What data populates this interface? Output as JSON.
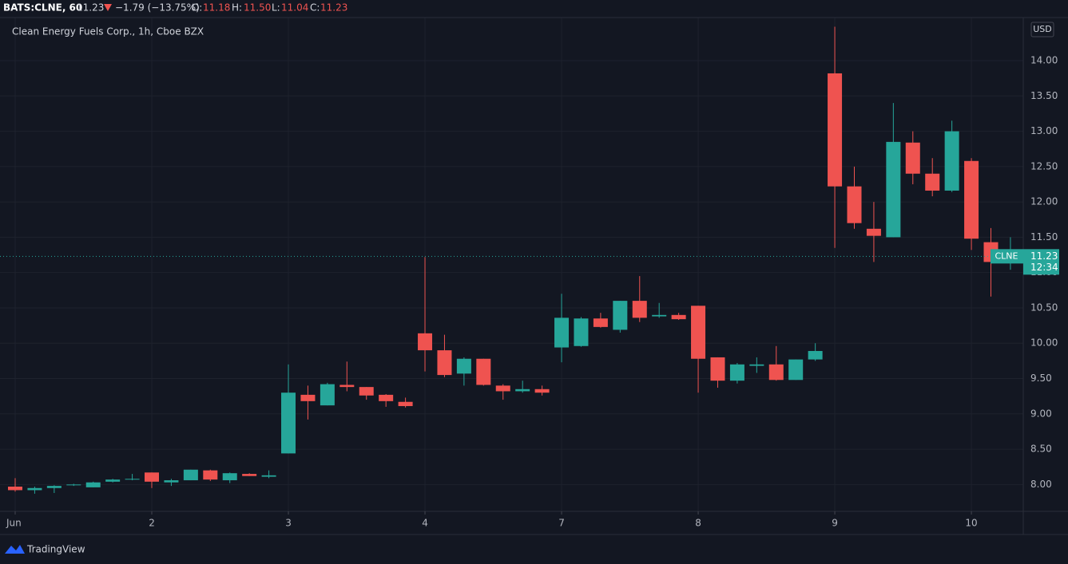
{
  "header": {
    "symbol": "BATS:CLNE, 60",
    "last": "11.23",
    "change": "−1.79 (−13.75%)",
    "o_label": "O:",
    "o": "11.18",
    "h_label": "H:",
    "h": "11.50",
    "l_label": "L:",
    "l": "11.04",
    "c_label": "C:",
    "c": "11.23"
  },
  "brand": "TradingView",
  "chart_data": {
    "type": "candlestick",
    "title": "Clean Energy Fuels Corp., 1h, Cboe BZX",
    "currency": "USD",
    "categories": [
      "Jun",
      null,
      null,
      null,
      null,
      null,
      null,
      "2",
      null,
      null,
      null,
      null,
      null,
      null,
      "3",
      null,
      null,
      null,
      null,
      null,
      null,
      "4",
      null,
      null,
      null,
      null,
      null,
      null,
      "7",
      null,
      null,
      null,
      null,
      null,
      null,
      "8",
      null,
      null,
      null,
      null,
      null,
      null,
      "9",
      null,
      null,
      null,
      null,
      null,
      null,
      "10",
      null,
      null
    ],
    "open": [
      7.97,
      7.92,
      7.95,
      7.99,
      7.96,
      8.04,
      8.07,
      8.17,
      8.03,
      8.06,
      8.2,
      8.06,
      8.15,
      8.11,
      8.44,
      9.27,
      9.12,
      9.41,
      9.38,
      9.27,
      9.17,
      10.14,
      9.9,
      9.57,
      9.78,
      9.4,
      9.32,
      9.35,
      9.94,
      9.96,
      10.35,
      10.19,
      10.6,
      10.38,
      10.4,
      10.53,
      9.8,
      9.47,
      9.68,
      9.7,
      9.48,
      9.77,
      13.82,
      12.22,
      11.62,
      11.5,
      12.84,
      12.4,
      12.16,
      12.58,
      11.43,
      11.18
    ],
    "high": [
      8.09,
      7.97,
      7.99,
      8.01,
      8.04,
      8.08,
      8.15,
      8.17,
      8.08,
      8.21,
      8.21,
      8.17,
      8.16,
      8.2,
      9.7,
      9.4,
      9.44,
      9.74,
      9.38,
      9.28,
      9.23,
      11.22,
      10.12,
      9.8,
      9.78,
      9.42,
      9.47,
      9.4,
      10.7,
      10.37,
      10.43,
      10.6,
      10.95,
      10.57,
      10.43,
      10.53,
      9.8,
      9.72,
      9.8,
      9.96,
      9.77,
      10.0,
      14.48,
      12.5,
      12.0,
      13.4,
      13.0,
      12.62,
      13.15,
      12.62,
      11.63,
      11.5
    ],
    "low": [
      7.9,
      7.87,
      7.88,
      7.98,
      7.96,
      8.03,
      8.06,
      7.95,
      7.98,
      8.06,
      8.05,
      8.02,
      8.12,
      8.09,
      8.44,
      8.92,
      9.12,
      9.32,
      9.2,
      9.1,
      9.09,
      9.6,
      9.52,
      9.4,
      9.4,
      9.2,
      9.3,
      9.26,
      9.73,
      9.95,
      10.22,
      10.15,
      10.3,
      10.36,
      10.33,
      9.3,
      9.37,
      9.43,
      9.58,
      9.47,
      9.48,
      9.75,
      11.35,
      11.62,
      11.15,
      11.5,
      12.25,
      12.08,
      12.14,
      11.32,
      10.66,
      11.04
    ],
    "close": [
      7.92,
      7.95,
      7.98,
      8.0,
      8.03,
      8.07,
      8.08,
      8.04,
      8.06,
      8.21,
      8.07,
      8.16,
      8.12,
      8.13,
      9.3,
      9.18,
      9.42,
      9.38,
      9.26,
      9.18,
      9.11,
      9.9,
      9.55,
      9.78,
      9.41,
      9.32,
      9.35,
      9.3,
      10.36,
      10.35,
      10.23,
      10.6,
      10.36,
      10.4,
      10.34,
      9.78,
      9.47,
      9.7,
      9.7,
      9.48,
      9.77,
      9.89,
      12.22,
      11.7,
      11.52,
      12.85,
      12.4,
      12.16,
      13.0,
      11.48,
      11.15,
      11.23
    ],
    "up_color": "#26a69a",
    "down_color": "#ef5350",
    "ylim": [
      7.62,
      14.61
    ],
    "yticks": [
      {
        "value": 8,
        "label": "8.00"
      },
      {
        "value": 8.5,
        "label": "8.50"
      },
      {
        "value": 9,
        "label": "9.00"
      },
      {
        "value": 9.5,
        "label": "9.50"
      },
      {
        "value": 10,
        "label": "10.00"
      },
      {
        "value": 10.5,
        "label": "10.50"
      },
      {
        "value": 11,
        "label": "11.00"
      },
      {
        "value": 11.5,
        "label": "11.50"
      },
      {
        "value": 12,
        "label": "12.00"
      },
      {
        "value": 12.5,
        "label": "12.50"
      },
      {
        "value": 13,
        "label": "13.00"
      },
      {
        "value": 13.5,
        "label": "13.50"
      },
      {
        "value": 14,
        "label": "14.00"
      }
    ],
    "grid": true,
    "price_tag": {
      "symbol": "CLNE",
      "last_price": 11.23,
      "countdown": "12:34"
    }
  }
}
